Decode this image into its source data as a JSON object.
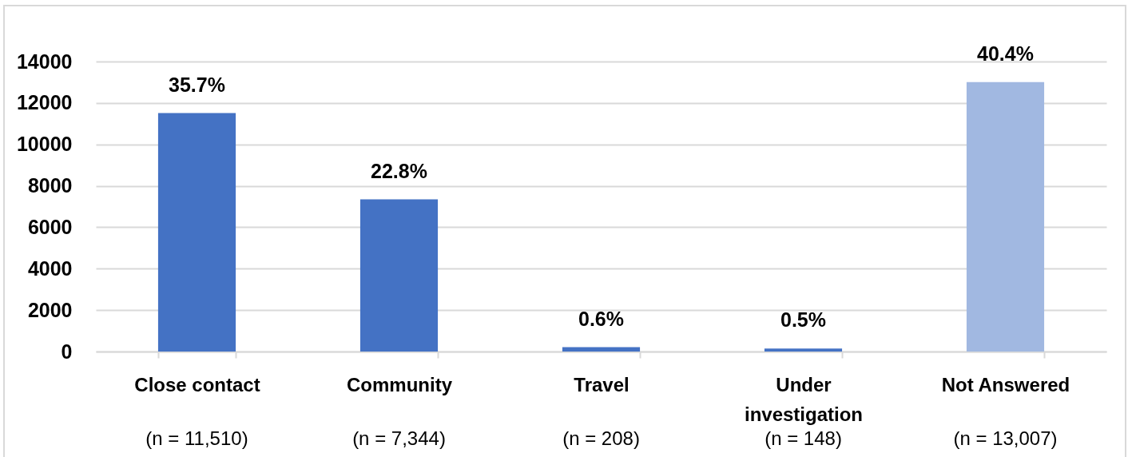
{
  "chart_data": {
    "type": "bar",
    "categories": [
      "Close contact",
      "Community",
      "Travel",
      "Under investigation",
      "Not Answered"
    ],
    "values": [
      11510,
      7344,
      208,
      148,
      13007
    ],
    "colors": [
      "#4472c4",
      "#4472c4",
      "#4472c4",
      "#4472c4",
      "#a1b8e1"
    ],
    "ylim": [
      0,
      14000
    ],
    "yticks": [
      0,
      2000,
      4000,
      6000,
      8000,
      10000,
      12000,
      14000
    ],
    "grid": "y",
    "annotations": [
      {
        "text": "35.7%",
        "x": "Close contact",
        "y": 11510
      },
      {
        "text": "22.8%",
        "x": "Community",
        "y": 7344
      },
      {
        "text": "0.6%",
        "x": "Travel",
        "y": 208
      },
      {
        "text": "0.5%",
        "x": "Under investigation",
        "y": 148
      },
      {
        "text": "40.4%",
        "x": "Not Answered",
        "y": 13007
      },
      "(n = 11,510)",
      "(n = 7,344)",
      "(n = 208)",
      "(n = 148)",
      "(n = 13,007)"
    ]
  }
}
